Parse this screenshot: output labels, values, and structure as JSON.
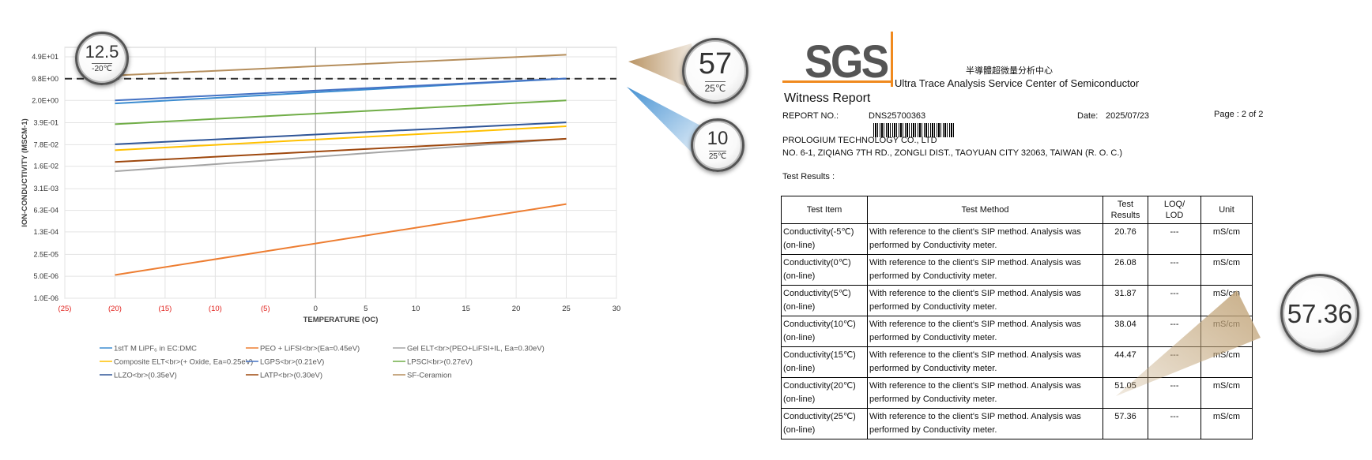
{
  "chart_data": {
    "type": "line",
    "x_axis": {
      "label": "TEMPERATURE (OC)",
      "range": [
        -25,
        30
      ],
      "ticks": [
        -25,
        -20,
        -15,
        -10,
        -5,
        0,
        5,
        10,
        15,
        20,
        25,
        30
      ],
      "tick_labels": [
        "(25)",
        "(20)",
        "(15)",
        "(10)",
        "(5)",
        "0",
        "5",
        "10",
        "15",
        "20",
        "25",
        "30"
      ],
      "negative_tick_color": "#e0201b"
    },
    "y_axis": {
      "label": "ION-CONDUCTIVITY (MSCM-1)",
      "scale": "log",
      "range": [
        1e-06,
        98
      ],
      "ticks": [
        1e-06,
        5e-06,
        2.5e-05,
        0.00013,
        0.00063,
        0.0031,
        0.016,
        0.078,
        0.39,
        2.0,
        9.8,
        49
      ],
      "tick_labels": [
        "1.0E-06",
        "5.0E-06",
        "2.5E-05",
        "1.3E-04",
        "6.3E-04",
        "3.1E-03",
        "1.6E-02",
        "7.8E-02",
        "3.9E-01",
        "2.0E+00",
        "9.8E+00",
        "4.9E+01"
      ]
    },
    "grid": true,
    "reference_line": {
      "y": 9.8,
      "style": "dashed"
    },
    "legend_position": "bottom",
    "series": [
      {
        "name": "1stT M LiPF₆ in EC:DMC",
        "color": "#3c8cd0",
        "x": [
          -20,
          25
        ],
        "y": [
          1.6,
          10.0
        ]
      },
      {
        "name": "PEO + LiFSI<br>(Ea=0.45eV)",
        "color": "#ed7d31",
        "x": [
          -20,
          25
        ],
        "y": [
          5.5e-06,
          0.001
        ]
      },
      {
        "name": "Gel ELT<br>(PEO+LiFSI+IL, Ea=0.30eV)",
        "color": "#a5a5a5",
        "x": [
          -20,
          25
        ],
        "y": [
          0.011,
          0.12
        ]
      },
      {
        "name": "Composite ELT<br>(+ Oxide, Ea=0.25eV)",
        "color": "#ffc000",
        "x": [
          -20,
          25
        ],
        "y": [
          0.052,
          0.3
        ]
      },
      {
        "name": "LGPS<br>(0.21eV)",
        "color": "#4472c4",
        "x": [
          -20,
          25
        ],
        "y": [
          2.0,
          10.0
        ]
      },
      {
        "name": "LPSCl<br>(0.27eV)",
        "color": "#70ad47",
        "x": [
          -20,
          25
        ],
        "y": [
          0.35,
          2.0
        ]
      },
      {
        "name": "LLZO<br>(0.35eV)",
        "color": "#2f5597",
        "x": [
          -20,
          25
        ],
        "y": [
          0.08,
          0.4
        ]
      },
      {
        "name": "LATP<br>(0.30eV)",
        "color": "#9e480e",
        "x": [
          -20,
          25
        ],
        "y": [
          0.022,
          0.12
        ]
      },
      {
        "name": "SF-Ceramion",
        "color": "#b58e5c",
        "x": [
          -20,
          25
        ],
        "y": [
          12.5,
          57
        ]
      }
    ]
  },
  "callouts": {
    "c1": {
      "value": "12.5",
      "unit": "-20℃"
    },
    "c2": {
      "value": "57",
      "unit": "25℃"
    },
    "c3": {
      "value": "10",
      "unit": "25℃"
    },
    "c4": {
      "value": "57.36"
    }
  },
  "report": {
    "center_cn": "半導體超微量分析中心",
    "center_en": "Ultra Trace Analysis Service Center of Semiconductor",
    "logo_text": "SGS",
    "title": "Witness Report",
    "report_no_label": "REPORT NO.:",
    "report_no": "DNS25700363",
    "date_label": "Date:",
    "date": "2025/07/23",
    "page": "Page : 2 of 2",
    "company": "PROLOGIUM TECHNOLOGY CO., LTD",
    "address": "NO. 6-1, ZIQIANG 7TH RD., ZONGLI DIST., TAOYUAN CITY 32063, TAIWAN (R. O. C.)",
    "results_label": "Test Results :",
    "headers": {
      "item": "Test Item",
      "method": "Test Method",
      "results_1": "Test",
      "results_2": "Results",
      "loq_1": "LOQ/",
      "loq_2": "LOD",
      "unit": "Unit"
    },
    "rows": [
      {
        "item1": "Conductivity(-5℃)",
        "item2": "(on-line)",
        "method1": "With reference to the client's SIP method. Analysis was",
        "method2": "performed by Conductivity meter.",
        "result": "20.76",
        "loq": "---",
        "unit": "mS/cm"
      },
      {
        "item1": "Conductivity(0℃)",
        "item2": "(on-line)",
        "method1": "With reference to the client's SIP method. Analysis was",
        "method2": "performed by Conductivity meter.",
        "result": "26.08",
        "loq": "---",
        "unit": "mS/cm"
      },
      {
        "item1": "Conductivity(5℃)",
        "item2": "(on-line)",
        "method1": "With reference to the client's SIP method. Analysis was",
        "method2": "performed by Conductivity meter.",
        "result": "31.87",
        "loq": "---",
        "unit": "mS/cm"
      },
      {
        "item1": "Conductivity(10℃)",
        "item2": "(on-line)",
        "method1": "With reference to the client's SIP method. Analysis was",
        "method2": "performed by Conductivity meter.",
        "result": "38.04",
        "loq": "---",
        "unit": "mS/cm"
      },
      {
        "item1": "Conductivity(15℃)",
        "item2": "(on-line)",
        "method1": "With reference to the client's SIP method. Analysis was",
        "method2": "performed by Conductivity meter.",
        "result": "44.47",
        "loq": "---",
        "unit": "mS/cm"
      },
      {
        "item1": "Conductivity(20℃)",
        "item2": "(on-line)",
        "method1": "With reference to the client's SIP method. Analysis was",
        "method2": "performed by Conductivity meter.",
        "result": "51.05",
        "loq": "---",
        "unit": "mS/cm"
      },
      {
        "item1": "Conductivity(25℃)",
        "item2": "(on-line)",
        "method1": "With reference to the client's SIP method. Analysis was",
        "method2": "performed by Conductivity meter.",
        "result": "57.36",
        "loq": "---",
        "unit": "mS/cm"
      }
    ]
  }
}
